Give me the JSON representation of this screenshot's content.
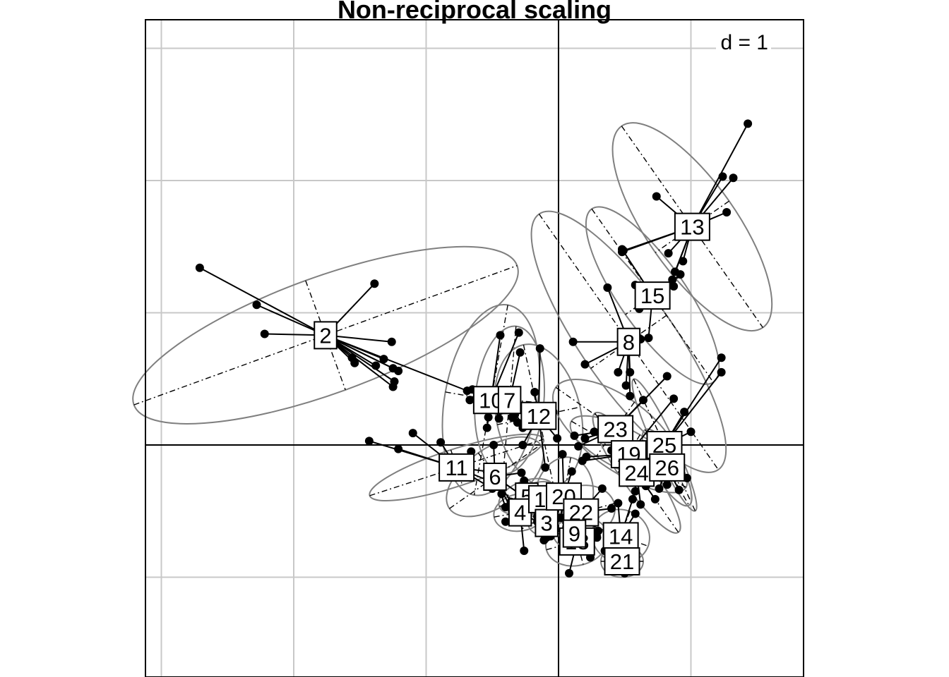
{
  "title": "Non-reciprocal scaling",
  "grid_label": "d = 1",
  "colors": {
    "grid": "#c8c8c8",
    "ellipse": "#7f7f7f",
    "points": "#000000",
    "background": "#ffffff"
  },
  "chart_data": {
    "type": "scatter",
    "title": "Non-reciprocal scaling",
    "grid_spacing": 1,
    "grid": true,
    "xlim": [
      -3.12,
      1.86
    ],
    "ylim": [
      -1.74,
      3.23
    ],
    "groups": [
      {
        "label": "2",
        "center": [
          -1.76,
          0.83
        ],
        "ellipse": {
          "rx": 1.54,
          "ry": 0.44,
          "angle": -20
        },
        "points": [
          [
            -2.71,
            1.34
          ],
          [
            -2.28,
            1.06
          ],
          [
            -1.39,
            1.22
          ],
          [
            -2.22,
            0.84
          ],
          [
            -1.26,
            0.78
          ],
          [
            -1.32,
            0.65
          ],
          [
            -1.25,
            0.58
          ],
          [
            -1.21,
            0.56
          ],
          [
            -1.38,
            0.6
          ],
          [
            -1.24,
            0.48
          ],
          [
            -1.25,
            0.44
          ],
          [
            -1.56,
            0.66
          ],
          [
            -1.54,
            0.62
          ],
          [
            -0.69,
            0.41
          ]
        ]
      },
      {
        "label": "10",
        "center": [
          -0.51,
          0.34
        ],
        "ellipse": {
          "rx": 0.35,
          "ry": 0.73,
          "angle": 10
        },
        "points": [
          [
            -0.44,
            0.83
          ],
          [
            -0.3,
            0.85
          ],
          [
            -0.67,
            0.34
          ],
          [
            -0.65,
            0.42
          ],
          [
            -0.44,
            0.26
          ],
          [
            -0.53,
            0.21
          ],
          [
            -0.54,
            0.13
          ],
          [
            -0.45,
            0.2
          ]
        ]
      },
      {
        "label": "7",
        "center": [
          -0.37,
          0.34
        ],
        "ellipse": {
          "rx": 0.26,
          "ry": 0.56,
          "angle": 5
        },
        "points": [
          [
            -0.29,
            0.7
          ],
          [
            -0.41,
            0.28
          ],
          [
            -0.33,
            0.23
          ],
          [
            -0.31,
            0.17
          ],
          [
            -0.27,
            0.13
          ],
          [
            -0.35,
            0.21
          ]
        ]
      },
      {
        "label": "12",
        "center": [
          -0.15,
          0.22
        ],
        "ellipse": {
          "rx": 0.32,
          "ry": 0.55,
          "angle": -12
        },
        "points": [
          [
            -0.14,
            0.73
          ],
          [
            -0.18,
            0.4
          ],
          [
            -0.27,
            0.16
          ],
          [
            -0.04,
            0.25
          ],
          [
            -0.01,
            0.05
          ],
          [
            -0.27,
            0.0
          ],
          [
            -0.1,
            -0.17
          ]
        ]
      },
      {
        "label": "11",
        "center": [
          -0.77,
          -0.17
        ],
        "ellipse": {
          "rx": 0.69,
          "ry": 0.14,
          "angle": -18
        },
        "points": [
          [
            -1.43,
            0.03
          ],
          [
            -1.21,
            -0.03
          ],
          [
            -1.1,
            0.09
          ],
          [
            -0.89,
            0.02
          ],
          [
            -0.66,
            -0.05
          ],
          [
            -0.54,
            -0.2
          ],
          [
            -0.48,
            -0.29
          ],
          [
            -0.5,
            -0.33
          ]
        ]
      },
      {
        "label": "6",
        "center": [
          -0.48,
          -0.24
        ],
        "ellipse": {
          "rx": 0.42,
          "ry": 0.22,
          "angle": -35
        },
        "points": [
          [
            -0.49,
            0.0
          ],
          [
            -0.28,
            -0.21
          ],
          [
            -0.43,
            -0.37
          ],
          [
            -0.36,
            -0.43
          ],
          [
            -0.4,
            -0.47
          ],
          [
            -0.35,
            -0.5
          ],
          [
            -0.22,
            -0.42
          ]
        ]
      },
      {
        "label": "5",
        "center": [
          -0.24,
          -0.39
        ],
        "ellipse": {
          "rx": 0.22,
          "ry": 0.12,
          "angle": -20
        },
        "points": [
          [
            -0.26,
            -0.27
          ],
          [
            -0.27,
            -0.51
          ],
          [
            -0.16,
            -0.54
          ],
          [
            -0.1,
            -0.57
          ]
        ]
      },
      {
        "label": "4",
        "center": [
          -0.29,
          -0.51
        ],
        "ellipse": {
          "rx": 0.2,
          "ry": 0.14,
          "angle": -10
        },
        "points": [
          [
            -0.4,
            -0.58
          ],
          [
            -0.26,
            -0.8
          ],
          [
            -0.16,
            -0.58
          ]
        ]
      },
      {
        "label": "1",
        "center": [
          -0.14,
          -0.41
        ],
        "ellipse": {
          "rx": 0.19,
          "ry": 0.13,
          "angle": -10
        },
        "points": [
          [
            -0.12,
            -0.62
          ],
          [
            -0.1,
            -0.66
          ],
          [
            -0.09,
            -0.7
          ]
        ]
      },
      {
        "label": "3",
        "center": [
          -0.09,
          -0.59
        ],
        "ellipse": {
          "rx": 0.14,
          "ry": 0.1,
          "angle": 0
        },
        "points": [
          [
            -0.11,
            -0.72
          ],
          [
            -0.06,
            -0.69
          ]
        ]
      },
      {
        "label": "20",
        "center": [
          0.04,
          -0.39
        ],
        "ellipse": {
          "rx": 0.22,
          "ry": 0.3,
          "angle": 10
        },
        "points": [
          [
            0.03,
            -0.07
          ],
          [
            0.1,
            -0.2
          ],
          [
            0.12,
            -0.33
          ],
          [
            0.02,
            -0.55
          ],
          [
            0.1,
            -0.52
          ]
        ]
      },
      {
        "label": "22",
        "center": [
          0.17,
          -0.51
        ],
        "ellipse": {
          "rx": 0.26,
          "ry": 0.2,
          "angle": -15
        },
        "points": [
          [
            0.33,
            -0.33
          ],
          [
            0.4,
            -0.48
          ],
          [
            0.06,
            -0.62
          ],
          [
            0.16,
            -0.7
          ]
        ]
      },
      {
        "label": "18",
        "center": [
          0.14,
          -0.73
        ],
        "ellipse": {
          "rx": 0.24,
          "ry": 0.18,
          "angle": -15
        },
        "points": [
          [
            0.08,
            -0.97
          ],
          [
            0.24,
            -0.85
          ],
          [
            0.29,
            -0.7
          ],
          [
            0.3,
            -0.65
          ]
        ]
      },
      {
        "label": "9",
        "center": [
          0.12,
          -0.67
        ],
        "ellipse": {
          "rx": 0.16,
          "ry": 0.12,
          "angle": 0
        },
        "points": [
          [
            0.27,
            -0.67
          ]
        ]
      },
      {
        "label": "14",
        "center": [
          0.47,
          -0.69
        ],
        "ellipse": {
          "rx": 0.22,
          "ry": 0.2,
          "angle": 20
        },
        "points": [
          [
            0.45,
            -0.44
          ],
          [
            0.56,
            -0.41
          ],
          [
            0.58,
            -0.52
          ],
          [
            0.35,
            -0.8
          ]
        ]
      },
      {
        "label": "21",
        "center": [
          0.48,
          -0.88
        ],
        "ellipse": {
          "rx": 0.16,
          "ry": 0.12,
          "angle": 0
        },
        "points": [
          [
            0.5,
            -0.97
          ],
          [
            0.55,
            -0.74
          ]
        ]
      },
      {
        "label": "8",
        "center": [
          0.53,
          0.78
        ],
        "ellipse": {
          "rx": 1.18,
          "ry": 0.35,
          "angle": 55
        },
        "points": [
          [
            0.37,
            1.19
          ],
          [
            0.11,
            0.78
          ],
          [
            0.2,
            0.61
          ],
          [
            0.45,
            0.55
          ],
          [
            0.51,
            0.45
          ],
          [
            0.54,
            0.55
          ],
          [
            0.54,
            0.37
          ],
          [
            0.62,
            0.8
          ]
        ]
      },
      {
        "label": "15",
        "center": [
          0.71,
          1.13
        ],
        "ellipse": {
          "rx": 0.8,
          "ry": 0.25,
          "angle": 55
        },
        "points": [
          [
            0.48,
            1.48
          ],
          [
            0.58,
            1.21
          ],
          [
            0.61,
            1.03
          ],
          [
            0.68,
            0.81
          ],
          [
            0.87,
            1.2
          ],
          [
            0.92,
            1.29
          ]
        ]
      },
      {
        "label": "13",
        "center": [
          1.01,
          1.65
        ],
        "ellipse": {
          "rx": 0.93,
          "ry": 0.34,
          "angle": 55
        },
        "points": [
          [
            1.43,
            2.43
          ],
          [
            1.32,
            2.02
          ],
          [
            1.24,
            2.03
          ],
          [
            1.27,
            1.76
          ],
          [
            0.74,
            1.88
          ],
          [
            0.49,
            1.47
          ],
          [
            0.48,
            1.46
          ],
          [
            0.86,
            1.25
          ],
          [
            0.88,
            1.31
          ],
          [
            0.94,
            1.39
          ],
          [
            0.83,
            1.45
          ]
        ]
      },
      {
        "label": "23",
        "center": [
          0.43,
          0.12
        ],
        "ellipse": {
          "rx": 0.55,
          "ry": 0.25,
          "angle": 35
        },
        "points": [
          [
            0.82,
            0.52
          ],
          [
            0.64,
            0.34
          ],
          [
            0.2,
            0.05
          ],
          [
            0.12,
            0.07
          ],
          [
            0.15,
            -0.01
          ],
          [
            0.4,
            0.18
          ],
          [
            0.27,
            0.1
          ]
        ]
      },
      {
        "label": "19",
        "center": [
          0.53,
          -0.07
        ],
        "ellipse": {
          "rx": 0.5,
          "ry": 0.17,
          "angle": 30
        },
        "points": [
          [
            0.87,
            0.35
          ],
          [
            0.21,
            -0.09
          ],
          [
            0.18,
            -0.12
          ],
          [
            0.4,
            -0.04
          ],
          [
            0.43,
            0.0
          ]
        ]
      },
      {
        "label": "24",
        "center": [
          0.59,
          -0.21
        ],
        "ellipse": {
          "rx": 0.55,
          "ry": 0.12,
          "angle": 55
        },
        "points": [
          [
            0.66,
            -0.31
          ],
          [
            0.73,
            -0.41
          ],
          [
            0.58,
            -0.35
          ],
          [
            0.62,
            -0.45
          ],
          [
            0.73,
            -0.09
          ]
        ]
      },
      {
        "label": "25",
        "center": [
          0.8,
          0.0
        ],
        "ellipse": {
          "rx": 0.55,
          "ry": 0.08,
          "angle": 65
        },
        "points": [
          [
            1.23,
            0.66
          ],
          [
            1.23,
            0.55
          ],
          [
            0.95,
            0.25
          ],
          [
            1.0,
            0.1
          ],
          [
            0.83,
            -0.21
          ]
        ]
      },
      {
        "label": "26",
        "center": [
          0.82,
          -0.17
        ],
        "ellipse": {
          "rx": 0.33,
          "ry": 0.1,
          "angle": 60
        },
        "points": [
          [
            0.91,
            -0.34
          ],
          [
            0.97,
            -0.25
          ],
          [
            0.76,
            -0.33
          ],
          [
            0.82,
            -0.3
          ]
        ]
      }
    ]
  }
}
